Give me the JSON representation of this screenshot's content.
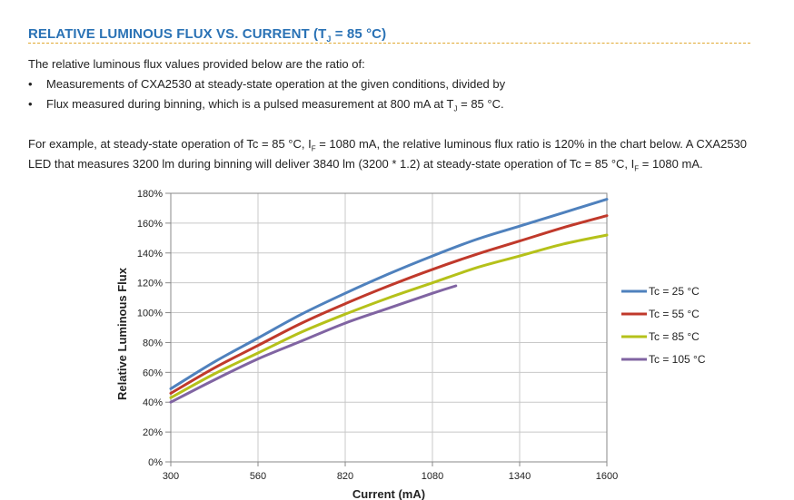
{
  "header": {
    "title_pre": "RELATIVE LUMINOUS FLUX VS. CURRENT (T",
    "title_sub": "J",
    "title_post": " = 85 °C)"
  },
  "intro": {
    "text": "The relative luminous flux values provided below are the ratio of:",
    "bullets": [
      {
        "dot": "•",
        "pre": "Measurements of CXA2530 at steady-state operation at the given conditions, divided by",
        "sub": "",
        "post": ""
      },
      {
        "dot": "•",
        "pre": "Flux measured during binning, which is a pulsed measurement at 800 mA at T",
        "sub": "J",
        "post": " = 85 °C."
      }
    ]
  },
  "example": {
    "line1_pre": "For example, at steady-state operation of Tc = 85 °C, I",
    "line1_sub": "F",
    "line1_post": " = 1080 mA, the relative luminous flux ratio is 120% in the chart below. A CXA2530",
    "line2_pre": "LED that measures 3200 lm during binning will deliver 3840 lm (3200 * 1.2) at steady-state operation of Tc = 85 °C, I",
    "line2_sub": "F",
    "line2_post": " = 1080 mA."
  },
  "chart_data": {
    "type": "line",
    "xlabel": "Current (mA)",
    "ylabel": "Relative Luminous Flux",
    "xlim": [
      300,
      1600
    ],
    "ylim": [
      0,
      180
    ],
    "x_ticks": [
      300,
      560,
      820,
      1080,
      1340,
      1600
    ],
    "y_ticks": [
      0,
      20,
      40,
      60,
      80,
      100,
      120,
      140,
      160,
      180
    ],
    "y_tick_labels": [
      "0%",
      "20%",
      "40%",
      "60%",
      "80%",
      "100%",
      "120%",
      "140%",
      "160%",
      "180%"
    ],
    "grid": true,
    "legend_position": "right",
    "series": [
      {
        "name": "Tc = 25 °C",
        "color": "#4f81bd",
        "x": [
          300,
          430,
          560,
          690,
          820,
          950,
          1080,
          1210,
          1340,
          1470,
          1600
        ],
        "y": [
          49,
          67,
          83,
          99,
          113,
          126,
          138,
          149,
          158,
          167,
          176
        ]
      },
      {
        "name": "Tc = 55 °C",
        "color": "#c0392b",
        "x": [
          300,
          430,
          560,
          690,
          820,
          950,
          1080,
          1210,
          1340,
          1470,
          1600
        ],
        "y": [
          46,
          63,
          78,
          93,
          106,
          118,
          129,
          139,
          148,
          157,
          165
        ]
      },
      {
        "name": "Tc = 85 °C",
        "color": "#b5c11a",
        "x": [
          300,
          430,
          560,
          690,
          820,
          950,
          1080,
          1210,
          1340,
          1470,
          1600
        ],
        "y": [
          43,
          59,
          73,
          87,
          99,
          110,
          120,
          130,
          138,
          146,
          152
        ]
      },
      {
        "name": "Tc = 105 °C",
        "color": "#8064a2",
        "x": [
          300,
          430,
          560,
          690,
          820,
          950,
          1080,
          1150
        ],
        "y": [
          40,
          55,
          69,
          81,
          93,
          103,
          113,
          118
        ]
      }
    ]
  }
}
